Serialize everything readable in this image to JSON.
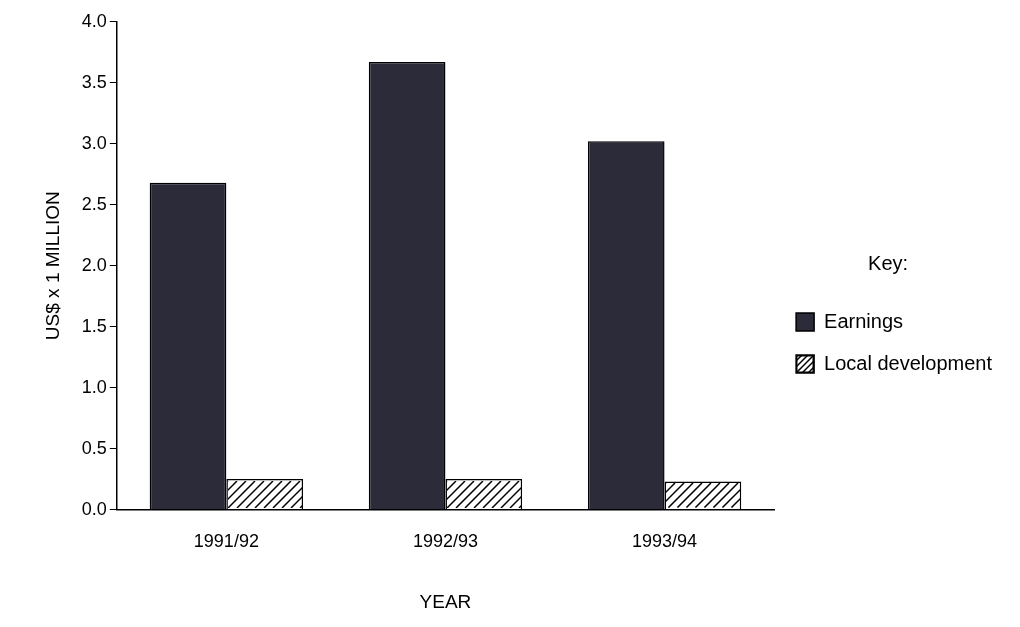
{
  "chart_data": {
    "type": "bar",
    "xlabel": "YEAR",
    "ylabel": "US$ x 1 MILLION",
    "legend_title": "Key:",
    "categories": [
      "1991/92",
      "1992/93",
      "1993/94"
    ],
    "series": [
      {
        "name": "Earnings",
        "color": "#2b2b3a",
        "values": [
          2.68,
          3.67,
          3.02
        ]
      },
      {
        "name": "Local development",
        "color": "#ffffff",
        "values": [
          0.25,
          0.25,
          0.23
        ]
      }
    ],
    "ylim": [
      0,
      4
    ],
    "yticks": [
      {
        "value": 0,
        "label": "0.0"
      },
      {
        "value": 0.5,
        "label": "0.5"
      },
      {
        "value": 1,
        "label": "1.0"
      },
      {
        "value": 1.5,
        "label": "1.5"
      },
      {
        "value": 2,
        "label": "2.0"
      },
      {
        "value": 2.5,
        "label": "2.5"
      },
      {
        "value": 3,
        "label": "3.0"
      },
      {
        "value": 3.5,
        "label": "3.5"
      },
      {
        "value": 4,
        "label": "4.0"
      }
    ],
    "grid": false,
    "legend": "right"
  }
}
